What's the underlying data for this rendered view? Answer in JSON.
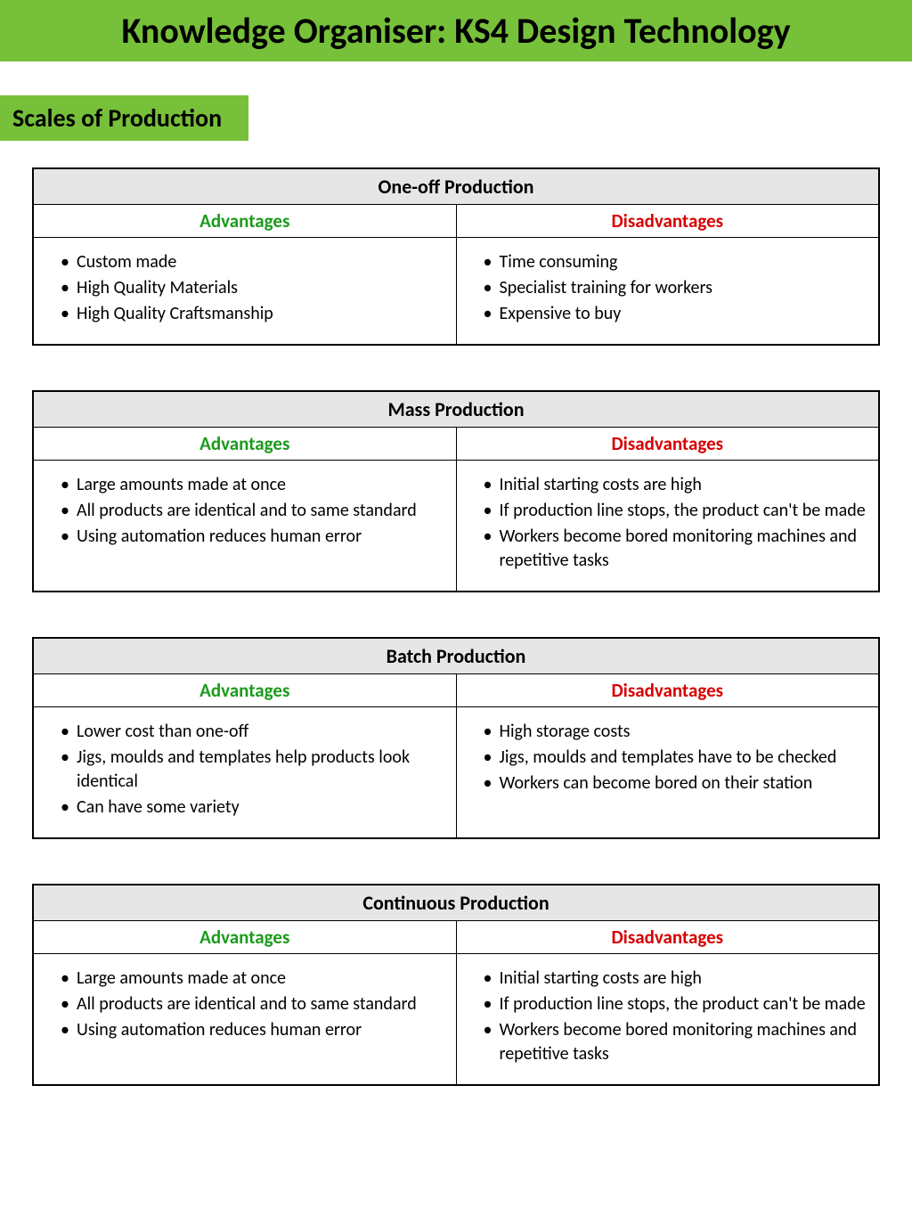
{
  "colors": {
    "header_bg": "#77c03a",
    "title_row_bg": "#e6e6e6",
    "advantages_color": "#1a9b1a",
    "disadvantages_color": "#d60000",
    "border_color": "#000000",
    "text_color": "#000000",
    "page_bg": "#ffffff"
  },
  "typography": {
    "main_title_size_pt": 30,
    "subheader_size_pt": 21,
    "table_title_size_pt": 16,
    "column_head_size_pt": 16,
    "body_size_pt": 15,
    "font_family": "Calibri"
  },
  "header": {
    "title": "Knowledge Organiser: KS4 Design Technology"
  },
  "subheader": {
    "title": "Scales of Production"
  },
  "labels": {
    "advantages": "Advantages",
    "disadvantages": "Disadvantages"
  },
  "tables": [
    {
      "title": "One-off Production",
      "advantages": [
        "Custom made",
        "High Quality Materials",
        "High Quality Craftsmanship"
      ],
      "disadvantages": [
        "Time consuming",
        "Specialist training for workers",
        "Expensive to buy"
      ]
    },
    {
      "title": "Mass Production",
      "advantages": [
        "Large amounts made at once",
        "All products are identical and to same standard",
        "Using automation reduces human error"
      ],
      "disadvantages": [
        "Initial starting costs are high",
        "If production line stops, the product can't be made",
        "Workers become bored monitoring machines and repetitive tasks"
      ]
    },
    {
      "title": "Batch Production",
      "advantages": [
        "Lower cost than one-off",
        "Jigs, moulds and templates help products look identical",
        "Can have some variety"
      ],
      "disadvantages": [
        "High storage costs",
        "Jigs, moulds and templates have to be checked",
        "Workers can become bored on their station"
      ]
    },
    {
      "title": "Continuous Production",
      "advantages": [
        "Large amounts made at once",
        "All products are identical and to same standard",
        "Using automation reduces human error"
      ],
      "disadvantages": [
        "Initial starting costs are high",
        "If production line stops, the product can't be made",
        "Workers become bored monitoring machines and repetitive tasks"
      ]
    }
  ]
}
